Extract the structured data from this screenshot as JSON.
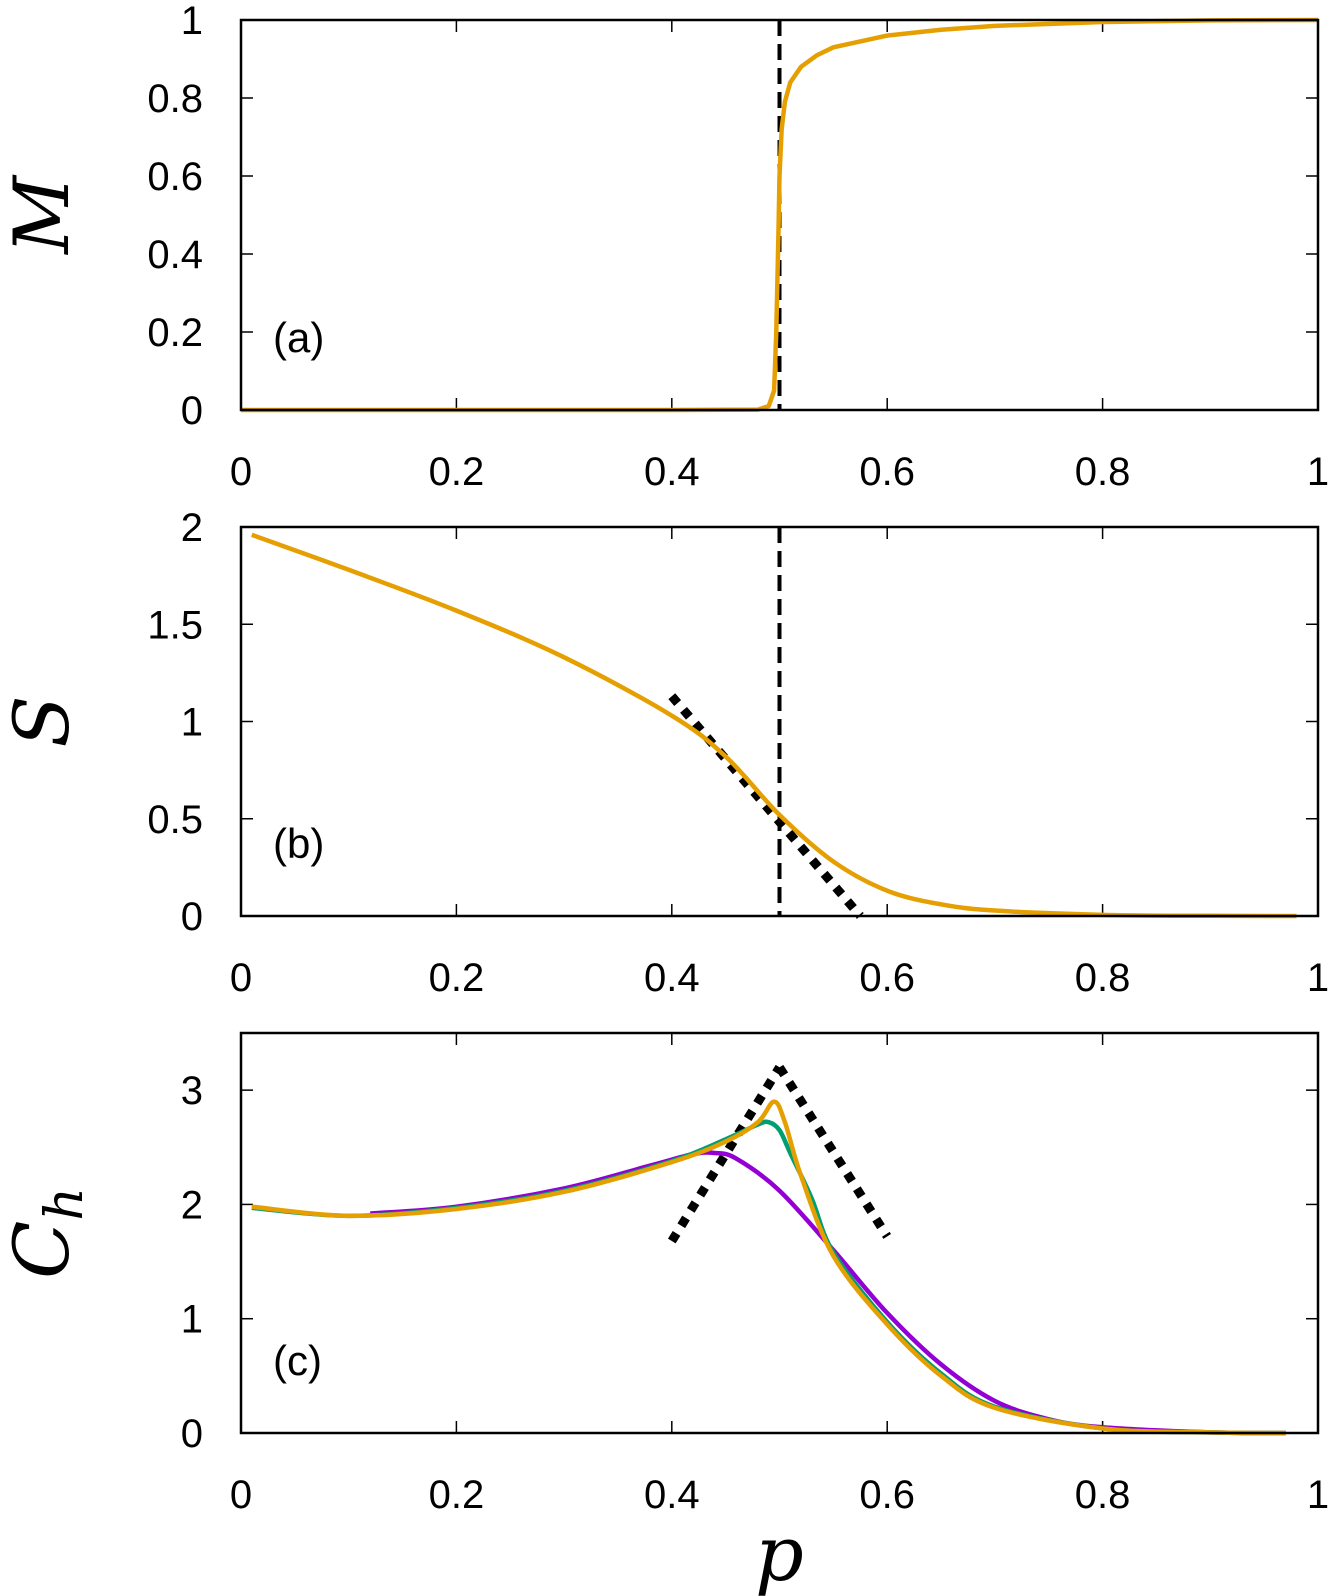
{
  "chart_data": [
    {
      "type": "line",
      "panel_label": "(a)",
      "ylabel": "M",
      "xlabel": "",
      "xlim": [
        0,
        1
      ],
      "ylim": [
        0,
        1
      ],
      "xticks": [
        "0",
        "0.2",
        "0.4",
        "0.6",
        "0.8",
        "1"
      ],
      "yticks": [
        "0",
        "0.2",
        "0.4",
        "0.6",
        "0.8",
        "1"
      ],
      "grid": false,
      "vline": {
        "x": 0.5,
        "style": "dashed",
        "color": "#000000"
      },
      "series": [
        {
          "color": "#E69F00",
          "smooth": false,
          "points": [
            [
              0,
              0
            ],
            [
              0.4,
              0
            ],
            [
              0.48,
              0.001
            ],
            [
              0.49,
              0.01
            ],
            [
              0.495,
              0.05
            ],
            [
              0.497,
              0.2
            ],
            [
              0.499,
              0.45
            ],
            [
              0.5,
              0.6
            ],
            [
              0.502,
              0.72
            ],
            [
              0.505,
              0.79
            ],
            [
              0.51,
              0.84
            ],
            [
              0.52,
              0.88
            ],
            [
              0.535,
              0.91
            ],
            [
              0.55,
              0.93
            ],
            [
              0.6,
              0.96
            ],
            [
              0.65,
              0.975
            ],
            [
              0.7,
              0.985
            ],
            [
              0.8,
              0.995
            ],
            [
              0.9,
              0.999
            ],
            [
              1,
              1
            ]
          ]
        }
      ]
    },
    {
      "type": "line",
      "panel_label": "(b)",
      "ylabel": "S",
      "xlabel": "",
      "xlim": [
        0,
        1
      ],
      "ylim": [
        0,
        2
      ],
      "xticks": [
        "0",
        "0.2",
        "0.4",
        "0.6",
        "0.8",
        "1"
      ],
      "yticks": [
        "0",
        "0.5",
        "1",
        "1.5",
        "2"
      ],
      "grid": false,
      "vline": {
        "x": 0.5,
        "style": "dashed",
        "color": "#000000"
      },
      "guides": [
        {
          "style": "dotted",
          "points": [
            [
              0.4,
              1.13
            ],
            [
              0.575,
              0
            ]
          ]
        }
      ],
      "series": [
        {
          "color": "#E69F00",
          "smooth": true,
          "points": [
            [
              0.01,
              1.96
            ],
            [
              0.1,
              1.78
            ],
            [
              0.2,
              1.57
            ],
            [
              0.3,
              1.33
            ],
            [
              0.4,
              1.03
            ],
            [
              0.45,
              0.82
            ],
            [
              0.5,
              0.52
            ],
            [
              0.55,
              0.28
            ],
            [
              0.6,
              0.13
            ],
            [
              0.65,
              0.06
            ],
            [
              0.7,
              0.028
            ],
            [
              0.8,
              0.006
            ],
            [
              0.9,
              0.001
            ],
            [
              0.98,
              0
            ]
          ]
        }
      ]
    },
    {
      "type": "line",
      "panel_label": "(c)",
      "ylabel": "C",
      "ylabel_sub": "h",
      "xlabel": "p",
      "xlim": [
        0,
        1
      ],
      "ylim": [
        0,
        3.5
      ],
      "xticks": [
        "0",
        "0.2",
        "0.4",
        "0.6",
        "0.8",
        "1"
      ],
      "yticks": [
        "0",
        "1",
        "2",
        "3"
      ],
      "grid": false,
      "guides": [
        {
          "style": "dotted",
          "points": [
            [
              0.4,
              1.68
            ],
            [
              0.5,
              3.2
            ]
          ]
        },
        {
          "style": "dotted",
          "points": [
            [
              0.5,
              3.2
            ],
            [
              0.6,
              1.72
            ]
          ]
        }
      ],
      "series": [
        {
          "color": "#9400D3",
          "smooth": true,
          "points": [
            [
              0.12,
              1.92
            ],
            [
              0.2,
              1.98
            ],
            [
              0.3,
              2.14
            ],
            [
              0.38,
              2.34
            ],
            [
              0.42,
              2.44
            ],
            [
              0.44,
              2.45
            ],
            [
              0.46,
              2.4
            ],
            [
              0.5,
              2.12
            ],
            [
              0.55,
              1.6
            ],
            [
              0.6,
              1.05
            ],
            [
              0.65,
              0.6
            ],
            [
              0.7,
              0.28
            ],
            [
              0.75,
              0.12
            ],
            [
              0.8,
              0.05
            ],
            [
              0.9,
              0.006
            ],
            [
              0.97,
              0
            ]
          ]
        },
        {
          "color": "#009E73",
          "smooth": true,
          "points": [
            [
              0.01,
              1.97
            ],
            [
              0.1,
              1.9
            ],
            [
              0.2,
              1.97
            ],
            [
              0.3,
              2.12
            ],
            [
              0.4,
              2.38
            ],
            [
              0.45,
              2.57
            ],
            [
              0.48,
              2.7
            ],
            [
              0.49,
              2.72
            ],
            [
              0.5,
              2.65
            ],
            [
              0.51,
              2.45
            ],
            [
              0.53,
              2.05
            ],
            [
              0.55,
              1.58
            ],
            [
              0.6,
              0.97
            ],
            [
              0.65,
              0.52
            ],
            [
              0.7,
              0.23
            ],
            [
              0.8,
              0.04
            ],
            [
              0.9,
              0.005
            ],
            [
              0.97,
              0
            ]
          ]
        },
        {
          "color": "#E69F00",
          "smooth": true,
          "points": [
            [
              0.01,
              1.98
            ],
            [
              0.1,
              1.9
            ],
            [
              0.2,
              1.96
            ],
            [
              0.3,
              2.11
            ],
            [
              0.4,
              2.37
            ],
            [
              0.45,
              2.55
            ],
            [
              0.48,
              2.72
            ],
            [
              0.495,
              2.9
            ],
            [
              0.505,
              2.72
            ],
            [
              0.52,
              2.25
            ],
            [
              0.55,
              1.55
            ],
            [
              0.6,
              0.95
            ],
            [
              0.65,
              0.5
            ],
            [
              0.7,
              0.22
            ],
            [
              0.8,
              0.04
            ],
            [
              0.9,
              0.005
            ],
            [
              0.97,
              0
            ]
          ]
        }
      ]
    }
  ]
}
